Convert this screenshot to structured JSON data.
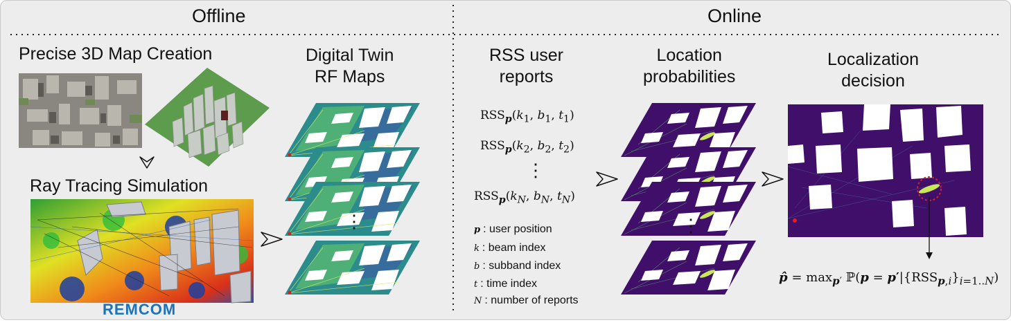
{
  "headers": {
    "offline": "Offline",
    "online": "Online"
  },
  "offline": {
    "map_creation_title": "Precise 3D Map Creation",
    "ray_tracing_title": "Ray Tracing Simulation",
    "remcom_logo": "REMCOM",
    "digital_twin_title_line1": "Digital Twin",
    "digital_twin_title_line2": "RF Maps"
  },
  "online": {
    "rss_title_line1": "RSS user",
    "rss_title_line2": "reports",
    "rss_reports": [
      "RSS_p(k_1, b_1, t_1)",
      "RSS_p(k_2, b_2, t_2)",
      "RSS_p(k_N, b_N, t_N)"
    ],
    "location_title_line1": "Location",
    "location_title_line2": "probabilities",
    "decision_title_line1": "Localization",
    "decision_title_line2": "decision",
    "decision_formula": "p̂ = max_p′ ℙ(p = p′ | {RSS_p,i}_i=1..N)"
  },
  "legend": [
    {
      "symbol": "p",
      "text": ": user position"
    },
    {
      "symbol": "k",
      "text": ": beam index"
    },
    {
      "symbol": "b",
      "text": ": subband index"
    },
    {
      "symbol": "t",
      "text": ": time index"
    },
    {
      "symbol": "N",
      "text": ": number of reports"
    }
  ],
  "colors": {
    "purple": "#3f0f6a",
    "teal": "#2c8c8c",
    "green": "#5e9e50",
    "background": "#ededed"
  }
}
